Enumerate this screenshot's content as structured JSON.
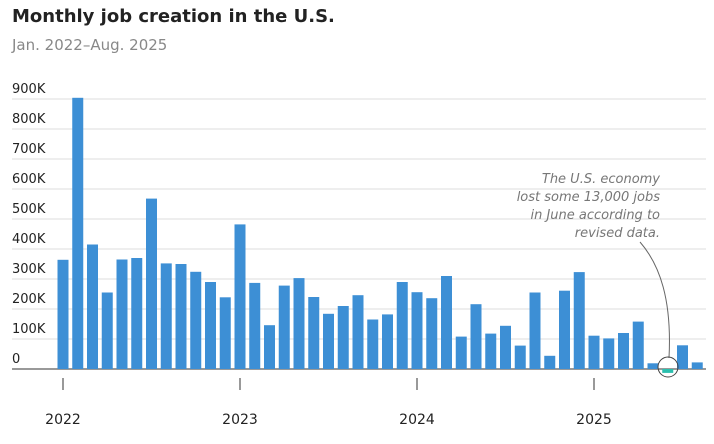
{
  "chart_data": {
    "type": "bar",
    "title": "Monthly job creation in the U.S.",
    "subtitle": "Jan. 2022–Aug. 2025",
    "categories": [
      "2022",
      null,
      null,
      null,
      null,
      null,
      null,
      null,
      null,
      null,
      null,
      null,
      "2023",
      null,
      null,
      null,
      null,
      null,
      null,
      null,
      null,
      null,
      null,
      null,
      "2024",
      null,
      null,
      null,
      null,
      null,
      null,
      null,
      null,
      null,
      null,
      null,
      "2025",
      null,
      null,
      null,
      null,
      null,
      null,
      null
    ],
    "values": [
      364000,
      904000,
      415000,
      255000,
      365000,
      370000,
      568000,
      352000,
      350000,
      324000,
      290000,
      239000,
      482000,
      287000,
      146000,
      278000,
      303000,
      240000,
      184000,
      210000,
      246000,
      165000,
      182000,
      290000,
      256000,
      236000,
      310000,
      108000,
      216000,
      118000,
      144000,
      78000,
      255000,
      44000,
      261000,
      323000,
      111000,
      102000,
      120000,
      158000,
      19000,
      -13000,
      79000,
      22000
    ],
    "colors": [
      "#3d8fd5",
      "#3d8fd5",
      "#3d8fd5",
      "#3d8fd5",
      "#3d8fd5",
      "#3d8fd5",
      "#3d8fd5",
      "#3d8fd5",
      "#3d8fd5",
      "#3d8fd5",
      "#3d8fd5",
      "#3d8fd5",
      "#3d8fd5",
      "#3d8fd5",
      "#3d8fd5",
      "#3d8fd5",
      "#3d8fd5",
      "#3d8fd5",
      "#3d8fd5",
      "#3d8fd5",
      "#3d8fd5",
      "#3d8fd5",
      "#3d8fd5",
      "#3d8fd5",
      "#3d8fd5",
      "#3d8fd5",
      "#3d8fd5",
      "#3d8fd5",
      "#3d8fd5",
      "#3d8fd5",
      "#3d8fd5",
      "#3d8fd5",
      "#3d8fd5",
      "#3d8fd5",
      "#3d8fd5",
      "#3d8fd5",
      "#3d8fd5",
      "#3d8fd5",
      "#3d8fd5",
      "#3d8fd5",
      "#3d8fd5",
      "#2bbfae",
      "#3d8fd5",
      "#3d8fd5"
    ],
    "ylim": [
      0,
      900000
    ],
    "yticks": [
      0,
      {
        "value": 100000,
        "label": "100K"
      },
      {
        "value": 200000,
        "label": "200K"
      },
      {
        "value": 300000,
        "label": "300K"
      },
      {
        "value": 400000,
        "label": "400K"
      },
      {
        "value": 500000,
        "label": "500K"
      },
      {
        "value": 600000,
        "label": "600K"
      },
      {
        "value": 700000,
        "label": "700K"
      },
      {
        "value": 800000,
        "label": "800K"
      },
      {
        "value": 900000,
        "label": "900K"
      }
    ],
    "grid": true,
    "annotation": {
      "lines": [
        "The U.S. economy",
        "lost some 13,000 jobs",
        "in June according to",
        "revised data."
      ]
    }
  }
}
